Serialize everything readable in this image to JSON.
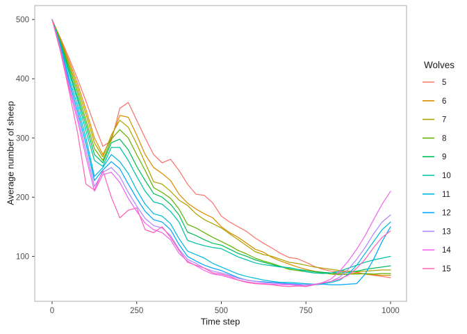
{
  "chart_data": {
    "type": "line",
    "title": "",
    "xlabel": "Time step",
    "ylabel": "Average number of sheep",
    "legend_title": "Wolves",
    "legend_position": "right",
    "grid": false,
    "xlim": [
      -51.3,
      1047.3
    ],
    "ylim": [
      24.1,
      523.6
    ],
    "xticks": [
      0,
      250,
      500,
      750,
      1000
    ],
    "yticks": [
      100,
      200,
      300,
      400,
      500
    ],
    "colors": {
      "background": "#FFFFFF",
      "panel_border": "#ABABAB",
      "tick": "#333333",
      "tick_label": "#4D4D4D",
      "title": "#1A1A1A"
    },
    "x": [
      0,
      25,
      50,
      75,
      100,
      125,
      150,
      175,
      200,
      225,
      250,
      275,
      300,
      325,
      350,
      375,
      400,
      425,
      450,
      475,
      500,
      525,
      550,
      575,
      600,
      625,
      650,
      675,
      700,
      725,
      750,
      775,
      800,
      825,
      850,
      875,
      900,
      925,
      950,
      975,
      1000
    ],
    "series": [
      {
        "name": "5",
        "color": "#F8766D",
        "values": [
          500,
          468,
          435,
          400,
          362,
          322,
          286,
          295,
          350,
          360,
          330,
          300,
          272,
          258,
          264,
          245,
          222,
          205,
          203,
          190,
          168,
          158,
          150,
          142,
          131,
          122,
          114,
          105,
          98,
          96,
          90,
          83,
          78,
          75,
          74,
          75,
          73,
          70,
          68,
          66,
          64
        ]
      },
      {
        "name": "6",
        "color": "#DB8E00",
        "values": [
          500,
          466,
          430,
          392,
          348,
          300,
          272,
          300,
          338,
          335,
          305,
          272,
          250,
          240,
          228,
          205,
          190,
          180,
          172,
          165,
          150,
          140,
          132,
          122,
          112,
          107,
          98,
          92,
          87,
          82,
          78,
          75,
          73,
          72,
          70,
          70,
          72,
          70,
          69,
          68,
          68
        ]
      },
      {
        "name": "7",
        "color": "#AEA200",
        "values": [
          500,
          464,
          425,
          385,
          340,
          292,
          268,
          305,
          330,
          318,
          290,
          258,
          226,
          222,
          210,
          195,
          186,
          172,
          162,
          155,
          148,
          138,
          128,
          118,
          108,
          103,
          100,
          95,
          90,
          88,
          85,
          82,
          80,
          78,
          76,
          75,
          74,
          75,
          76,
          77,
          77
        ]
      },
      {
        "name": "8",
        "color": "#64B200",
        "values": [
          500,
          462,
          420,
          378,
          330,
          282,
          262,
          298,
          314,
          300,
          272,
          245,
          216,
          208,
          198,
          180,
          154,
          148,
          140,
          132,
          125,
          118,
          110,
          104,
          97,
          92,
          88,
          83,
          78,
          76,
          74,
          72,
          72,
          70,
          69,
          70,
          70,
          71,
          70,
          71,
          71
        ]
      },
      {
        "name": "9",
        "color": "#00BD5C",
        "values": [
          500,
          460,
          415,
          370,
          322,
          272,
          258,
          292,
          298,
          280,
          252,
          228,
          206,
          200,
          188,
          170,
          141,
          135,
          128,
          122,
          119,
          112,
          105,
          100,
          94,
          90,
          86,
          83,
          80,
          78,
          76,
          74,
          73,
          72,
          72,
          73,
          75,
          78,
          80,
          82,
          84
        ]
      },
      {
        "name": "10",
        "color": "#00C1A7",
        "values": [
          500,
          458,
          410,
          364,
          312,
          262,
          252,
          284,
          284,
          262,
          235,
          210,
          192,
          188,
          176,
          158,
          127,
          122,
          118,
          115,
          113,
          106,
          99,
          94,
          89,
          86,
          84,
          82,
          81,
          78,
          74,
          72,
          71,
          72,
          75,
          80,
          85,
          90,
          94,
          97,
          100
        ]
      },
      {
        "name": "11",
        "color": "#00BADE",
        "values": [
          500,
          455,
          402,
          355,
          300,
          235,
          250,
          272,
          260,
          240,
          212,
          188,
          172,
          168,
          155,
          130,
          109,
          103,
          97,
          88,
          82,
          76,
          70,
          66,
          63,
          60,
          58,
          56,
          56,
          55,
          54,
          53,
          54,
          56,
          60,
          70,
          85,
          105,
          125,
          145,
          158
        ]
      },
      {
        "name": "12",
        "color": "#00A6FF",
        "values": [
          500,
          452,
          396,
          346,
          290,
          228,
          246,
          260,
          248,
          222,
          198,
          176,
          162,
          158,
          145,
          120,
          100,
          92,
          85,
          80,
          76,
          70,
          64,
          60,
          58,
          57,
          56,
          55,
          54,
          53,
          52,
          52,
          53,
          52,
          52,
          53,
          54,
          70,
          95,
          125,
          150
        ]
      },
      {
        "name": "13",
        "color": "#B385FF",
        "values": [
          500,
          450,
          390,
          338,
          278,
          218,
          242,
          250,
          235,
          208,
          185,
          164,
          152,
          148,
          135,
          112,
          95,
          88,
          80,
          75,
          72,
          68,
          63,
          60,
          58,
          56,
          55,
          54,
          53,
          52,
          52,
          53,
          55,
          58,
          65,
          78,
          95,
          115,
          138,
          158,
          170
        ]
      },
      {
        "name": "14",
        "color": "#EF67EB",
        "values": [
          500,
          448,
          385,
          330,
          268,
          210,
          238,
          242,
          225,
          198,
          176,
          156,
          145,
          140,
          128,
          105,
          92,
          84,
          76,
          70,
          68,
          64,
          60,
          57,
          55,
          54,
          53,
          52,
          52,
          51,
          50,
          52,
          56,
          62,
          75,
          92,
          112,
          135,
          162,
          188,
          210
        ]
      },
      {
        "name": "15",
        "color": "#FF63B6",
        "values": [
          500,
          445,
          380,
          310,
          222,
          212,
          245,
          200,
          165,
          178,
          182,
          145,
          140,
          150,
          132,
          110,
          90,
          85,
          80,
          72,
          70,
          66,
          60,
          56,
          54,
          53,
          52,
          50,
          49,
          50,
          49,
          52,
          55,
          58,
          62,
          68,
          80,
          95,
          115,
          132,
          143
        ]
      }
    ]
  }
}
